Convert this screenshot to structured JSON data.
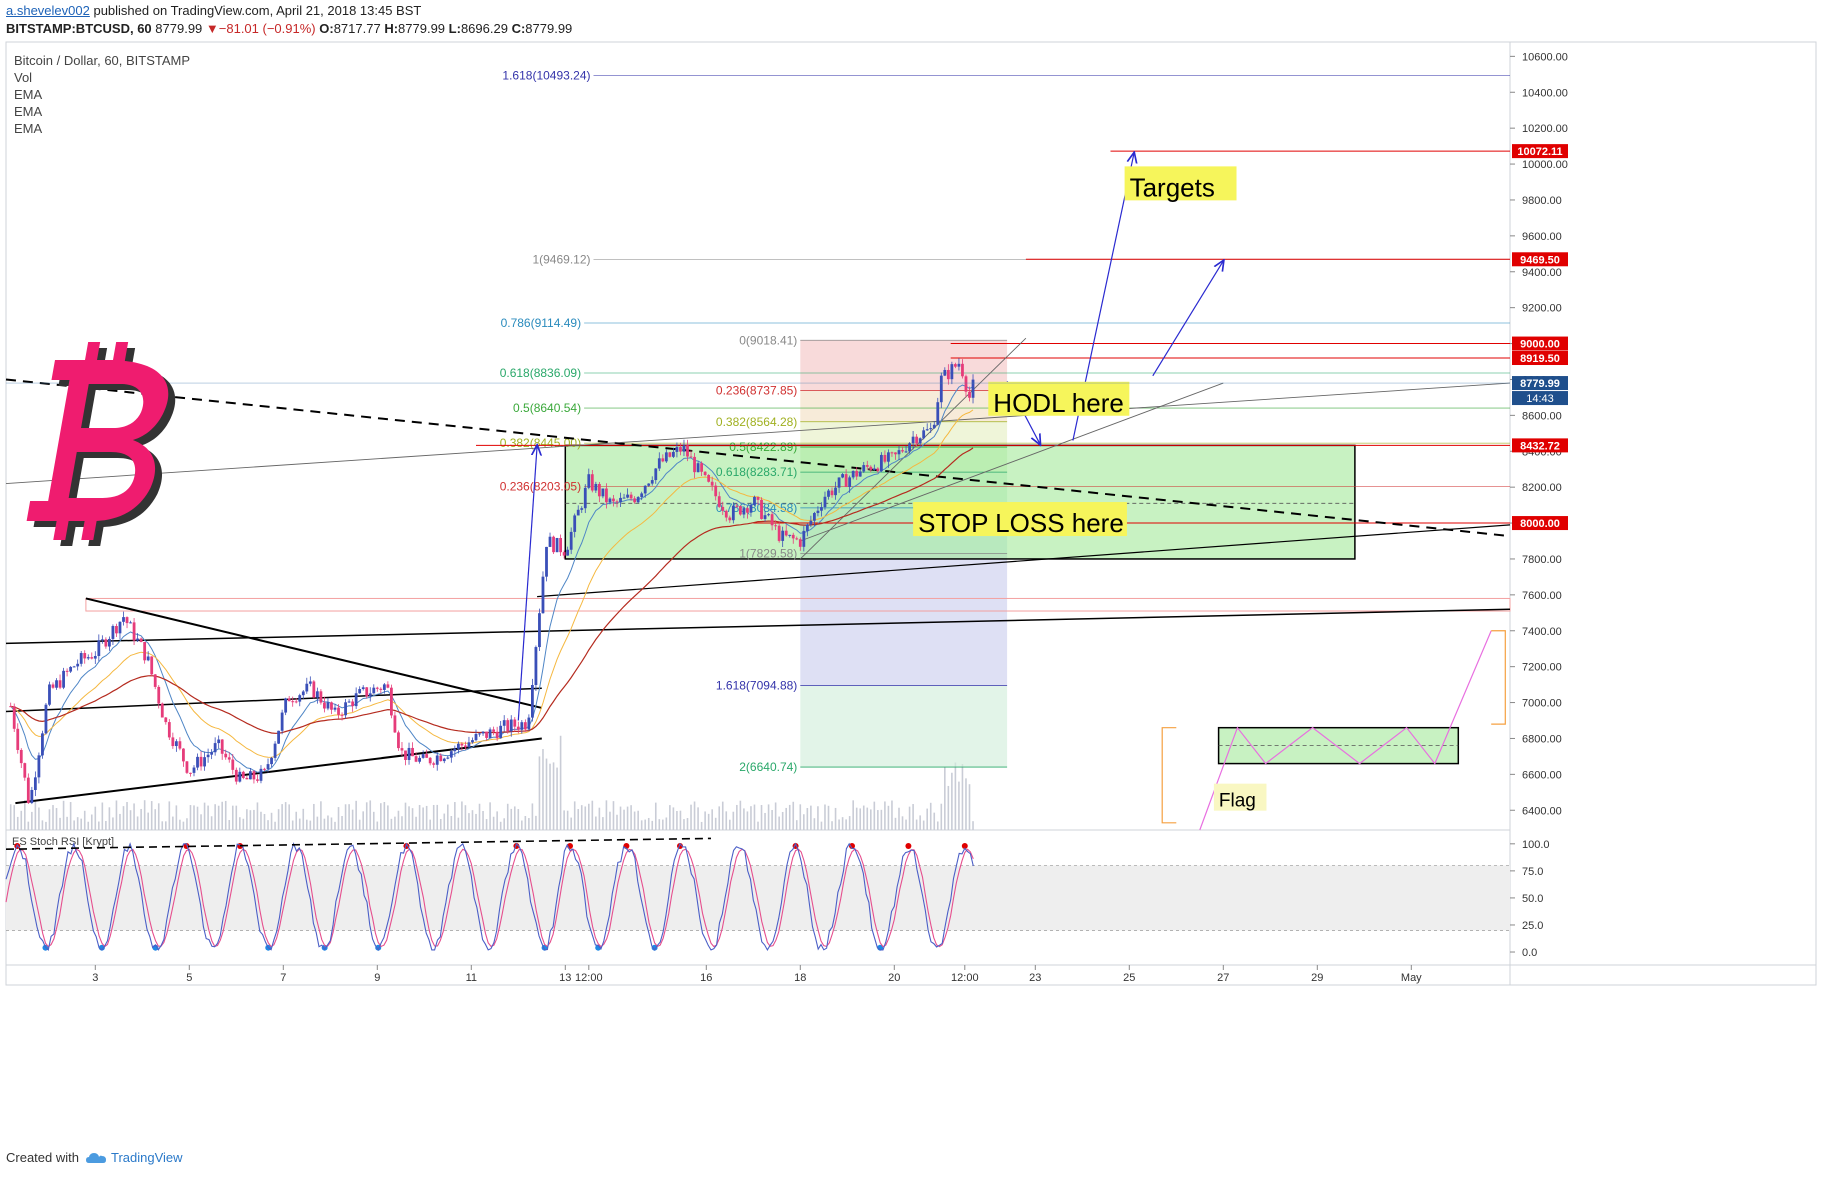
{
  "header": {
    "author": "a.shevelev002",
    "published_text": "published on TradingView.com, April 21, 2018 13:45 BST",
    "symbol": "BITSTAMP:BTCUSD, 60",
    "last": "8779.99",
    "change": "▼−81.01 (−0.91%)",
    "open_label": "O:",
    "open": "8717.77",
    "high_label": "H:",
    "high": "8779.99",
    "low_label": "L:",
    "low": "8696.29",
    "close_label": "C:",
    "close": "8779.99"
  },
  "legend": {
    "title": "Bitcoin / Dollar, 60, BITSTAMP",
    "items": [
      "Vol",
      "EMA",
      "EMA",
      "EMA"
    ]
  },
  "footer": {
    "created_with": "Created with",
    "brand": "TradingView"
  },
  "colors": {
    "bull": "#3a4fb8",
    "bear": "#e63c7a",
    "logo": "#ef1c6f",
    "ema_fast": "#4f86c6",
    "ema_mid": "#f5b840",
    "ema_slow": "#b52b1f",
    "target_line": "#e00000",
    "green_zone": "#9be88f"
  },
  "annotations": {
    "targets": "Targets",
    "hodl": "HODL here",
    "stop_loss": "STOP LOSS here",
    "flag": "Flag",
    "indicator_label": "ES Stoch RSI [Krypt]"
  },
  "chart_data": [
    {
      "type": "candlestick",
      "title": "Bitcoin / Dollar, 60, BITSTAMP",
      "y_axis_ticks": [
        6400,
        6600,
        6800,
        7000,
        7200,
        7400,
        7600,
        7800,
        8000,
        8200,
        8400,
        8600,
        8800,
        9000,
        9200,
        9400,
        9600,
        9800,
        10000,
        10200,
        10400,
        10600
      ],
      "y_axis_tick_labels": [
        "6400.00",
        "6600.00",
        "6800.00",
        "7000.00",
        "7200.00",
        "7400.00",
        "7600.00",
        "7800.00",
        "8000.00",
        "8200.00",
        "8400.00",
        "8600.00",
        "8800.00",
        "9000.00",
        "9200.00",
        "9400.00",
        "9600.00",
        "9800.00",
        "10000.00",
        "10200.00",
        "10400.00",
        "10600.00"
      ],
      "ylim": [
        6290,
        10680
      ],
      "x_axis_labels": [
        "3",
        "5",
        "7",
        "9",
        "11",
        "13",
        "12:00",
        "16",
        "18",
        "20",
        "12:00",
        "23",
        "25",
        "27",
        "29",
        "May"
      ],
      "x_label_days": [
        3,
        5,
        7,
        9,
        11,
        13,
        13.5,
        16,
        18,
        20,
        21.5,
        23,
        25,
        27,
        29,
        31
      ],
      "xlim": [
        1.1,
        33.1
      ],
      "price_path": [
        [
          1.2,
          6980
        ],
        [
          1.6,
          6430
        ],
        [
          2.0,
          7050
        ],
        [
          2.6,
          7220
        ],
        [
          3.0,
          7280
        ],
        [
          3.6,
          7480
        ],
        [
          4.1,
          7250
        ],
        [
          4.5,
          6880
        ],
        [
          5.0,
          6620
        ],
        [
          5.6,
          6760
        ],
        [
          6.1,
          6560
        ],
        [
          6.6,
          6600
        ],
        [
          7.1,
          7030
        ],
        [
          7.6,
          7080
        ],
        [
          8.1,
          6930
        ],
        [
          8.6,
          7040
        ],
        [
          9.2,
          7100
        ],
        [
          9.5,
          6720
        ],
        [
          10.0,
          6670
        ],
        [
          10.6,
          6740
        ],
        [
          11.1,
          6800
        ],
        [
          11.7,
          6860
        ],
        [
          12.2,
          6890
        ],
        [
          12.6,
          7900
        ],
        [
          13.0,
          7850
        ],
        [
          13.5,
          8230
        ],
        [
          14.0,
          8100
        ],
        [
          14.5,
          8150
        ],
        [
          15.0,
          8330
        ],
        [
          15.5,
          8420
        ],
        [
          16.0,
          8220
        ],
        [
          16.5,
          8050
        ],
        [
          17.0,
          8120
        ],
        [
          17.6,
          7920
        ],
        [
          18.0,
          7900
        ],
        [
          18.5,
          8150
        ],
        [
          19.0,
          8250
        ],
        [
          19.5,
          8320
        ],
        [
          20.0,
          8360
        ],
        [
          20.4,
          8480
        ],
        [
          20.8,
          8520
        ],
        [
          21.0,
          8800
        ],
        [
          21.4,
          8900
        ],
        [
          21.6,
          8700
        ],
        [
          21.7,
          8780
        ]
      ],
      "last_price": "8779.99",
      "countdown": "14:43",
      "price_labels": [
        {
          "value": 10072.11,
          "text": "10072.11"
        },
        {
          "value": 9469.5,
          "text": "9469.50"
        },
        {
          "value": 9000.0,
          "text": "9000.00"
        },
        {
          "value": 8919.5,
          "text": "8919.50"
        },
        {
          "value": 8432.72,
          "text": "8432.72"
        },
        {
          "value": 8000.0,
          "text": "8000.00"
        }
      ],
      "fib_extension": [
        {
          "level": "1.618",
          "value": 10493.24,
          "text": "1.618(10493.24)",
          "color": "#3333aa"
        },
        {
          "level": "1",
          "value": 9469.12,
          "text": "1(9469.12)",
          "color": "#888888"
        },
        {
          "level": "0.786",
          "value": 9114.49,
          "text": "0.786(9114.49)",
          "color": "#2a8bbd"
        },
        {
          "level": "0.618",
          "value": 8836.09,
          "text": "0.618(8836.09)",
          "color": "#2aa86a"
        },
        {
          "level": "0.5",
          "value": 8640.54,
          "text": "0.5(8640.54)",
          "color": "#3aa83a"
        },
        {
          "level": "0.382",
          "value": 8445.0,
          "text": "0.382(8445.00)",
          "color": "#a0b020"
        },
        {
          "level": "0.236",
          "value": 8203.05,
          "text": "0.236(8203.05)",
          "color": "#d03030"
        }
      ],
      "fib_retracement": [
        {
          "level": "0",
          "value": 9018.41,
          "text": "0(9018.41)",
          "color": "#888888"
        },
        {
          "level": "0.236",
          "value": 8737.85,
          "text": "0.236(8737.85)",
          "color": "#d03030"
        },
        {
          "level": "0.382",
          "value": 8564.28,
          "text": "0.382(8564.28)",
          "color": "#a0b020"
        },
        {
          "level": "0.5",
          "value": 8422.89,
          "text": "0.5(8422.89)",
          "color": "#3aa83a"
        },
        {
          "level": "0.618",
          "value": 8283.71,
          "text": "0.618(8283.71)",
          "color": "#2aa86a"
        },
        {
          "level": "0.786",
          "value": 8084.58,
          "text": "0.786(8084.58)",
          "color": "#2a8bbd"
        },
        {
          "level": "1",
          "value": 7829.58,
          "text": "1(7829.58)",
          "color": "#888888"
        },
        {
          "level": "1.618",
          "value": 7094.88,
          "text": "1.618(7094.88)",
          "color": "#3333aa"
        },
        {
          "level": "2",
          "value": 6640.74,
          "text": "2(6640.74)",
          "color": "#2aa86a"
        }
      ]
    },
    {
      "type": "line",
      "title": "ES Stoch RSI [Krypt]",
      "y_axis_ticks": [
        0,
        25,
        50,
        75,
        100
      ],
      "y_axis_tick_labels": [
        "0.0",
        "25.0",
        "50.0",
        "75.0",
        "100.0"
      ],
      "ylim": [
        -12,
        110
      ],
      "overbought": 80,
      "oversold": 20
    }
  ]
}
